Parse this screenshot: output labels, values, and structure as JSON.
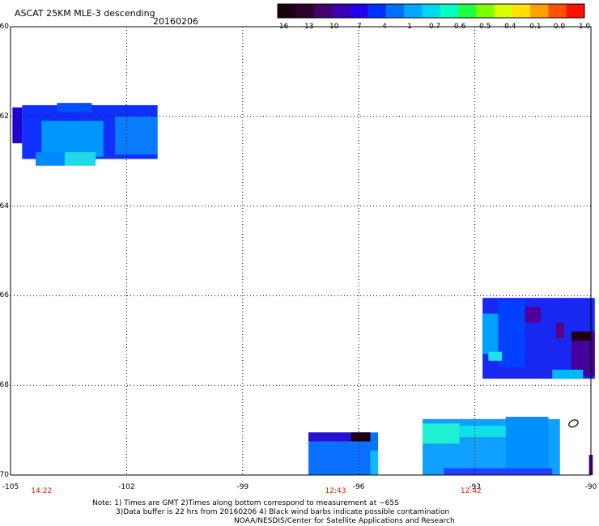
{
  "chart_data": {
    "type": "heatmap",
    "title": "ASCAT 25KM MLE-3 descending",
    "date": "20160206",
    "xlim": [
      -105,
      -90
    ],
    "ylim": [
      -70,
      -60
    ],
    "x_ticks": [
      {
        "value": -105,
        "label": "-105"
      },
      {
        "value": -102,
        "label": "-102"
      },
      {
        "value": -99,
        "label": "-99"
      },
      {
        "value": -96,
        "label": "-96"
      },
      {
        "value": -93,
        "label": "-93"
      },
      {
        "value": -90,
        "label": "-90"
      }
    ],
    "y_ticks": [
      {
        "value": -60,
        "label": "-60"
      },
      {
        "value": -62,
        "label": "-62"
      },
      {
        "value": -64,
        "label": "-64"
      },
      {
        "value": -66,
        "label": "-66"
      },
      {
        "value": -68,
        "label": "-68"
      },
      {
        "value": -70,
        "label": "-70"
      }
    ],
    "pass_times": [
      {
        "x": -104.2,
        "label": "14:22"
      },
      {
        "x": -96.6,
        "label": "12:43"
      },
      {
        "x": -93.1,
        "label": "12:42"
      }
    ],
    "colorbar": {
      "ticks": [
        "-16",
        "-13",
        "-10",
        "-7",
        "-4",
        "-1",
        "-0.7",
        "-0.6",
        "-0.5",
        "-0.4",
        "-0.1",
        "0.0",
        "1.0"
      ],
      "colors": [
        "#1a0010",
        "#2e0030",
        "#45006a",
        "#3a00b0",
        "#2400e8",
        "#0030ff",
        "#0070ff",
        "#00a8ff",
        "#00d8f0",
        "#00ffc0",
        "#20ff40",
        "#80ff00",
        "#d8ff00",
        "#ffe000",
        "#ffa000",
        "#ff5000",
        "#ff1000"
      ]
    },
    "swaths": [
      {
        "x0": -104.7,
        "x1": -101.2,
        "y0": -62.95,
        "y1": -61.75,
        "color": "#1030ff"
      },
      {
        "x0": -103.8,
        "x1": -102.9,
        "y0": -61.9,
        "y1": -61.7,
        "color": "#0050ff"
      },
      {
        "x0": -104.2,
        "x1": -102.6,
        "y0": -62.9,
        "y1": -62.1,
        "color": "#0098ff"
      },
      {
        "x0": -103.6,
        "x1": -102.8,
        "y0": -63.1,
        "y1": -62.8,
        "color": "#20d8e8"
      },
      {
        "x0": -104.35,
        "x1": -103.6,
        "y0": -63.1,
        "y1": -62.8,
        "color": "#0088ff"
      },
      {
        "x0": -102.3,
        "x1": -101.2,
        "y0": -62.85,
        "y1": -62.0,
        "color": "#0a7cff"
      },
      {
        "x0": -104.95,
        "x1": -104.7,
        "y0": -62.6,
        "y1": -61.8,
        "color": "#2200d0"
      },
      {
        "x0": -92.8,
        "x1": -89.9,
        "y0": -67.85,
        "y1": -66.05,
        "color": "#1828f0"
      },
      {
        "x0": -92.8,
        "x1": -92.2,
        "y0": -67.3,
        "y1": -66.4,
        "color": "#00a0ff"
      },
      {
        "x0": -92.4,
        "x1": -91.7,
        "y0": -67.6,
        "y1": -66.1,
        "color": "#0040ff"
      },
      {
        "x0": -91.7,
        "x1": -91.3,
        "y0": -66.6,
        "y1": -66.25,
        "color": "#50009a"
      },
      {
        "x0": -90.9,
        "x1": -90.7,
        "y0": -66.95,
        "y1": -66.6,
        "color": "#5a0080"
      },
      {
        "x0": -90.5,
        "x1": -89.9,
        "y0": -67.8,
        "y1": -66.8,
        "color": "#45009a"
      },
      {
        "x0": -90.5,
        "x1": -90.0,
        "y0": -67.0,
        "y1": -66.8,
        "color": "#200010"
      },
      {
        "x0": -91.0,
        "x1": -90.2,
        "y0": -67.85,
        "y1": -67.65,
        "color": "#00b8ff"
      },
      {
        "x0": -92.65,
        "x1": -92.3,
        "y0": -67.45,
        "y1": -67.25,
        "color": "#20e0f0"
      },
      {
        "x0": -97.3,
        "x1": -95.5,
        "y0": -70.0,
        "y1": -69.05,
        "color": "#0a70ff"
      },
      {
        "x0": -97.3,
        "x1": -95.7,
        "y0": -69.25,
        "y1": -69.05,
        "color": "#2810d0"
      },
      {
        "x0": -96.2,
        "x1": -95.7,
        "y0": -69.25,
        "y1": -69.05,
        "color": "#200018"
      },
      {
        "x0": -95.7,
        "x1": -95.5,
        "y0": -70.0,
        "y1": -69.45,
        "color": "#10b8ff"
      },
      {
        "x0": -94.35,
        "x1": -90.8,
        "y0": -70.0,
        "y1": -68.75,
        "color": "#10a0ff"
      },
      {
        "x0": -94.35,
        "x1": -93.4,
        "y0": -69.3,
        "y1": -68.85,
        "color": "#20f0d0"
      },
      {
        "x0": -93.4,
        "x1": -92.2,
        "y0": -69.15,
        "y1": -68.9,
        "color": "#10e0e8"
      },
      {
        "x0": -92.2,
        "x1": -91.1,
        "y0": -69.85,
        "y1": -68.7,
        "color": "#0090ff"
      },
      {
        "x0": -93.8,
        "x1": -91.0,
        "y0": -70.0,
        "y1": -69.85,
        "color": "#2040ff"
      },
      {
        "x0": -90.05,
        "x1": -89.95,
        "y0": -70.0,
        "y1": -69.55,
        "color": "#5a0090"
      }
    ],
    "markers": [
      {
        "x": -90.45,
        "y": -68.85,
        "shape": "ellipse"
      }
    ]
  },
  "notes": {
    "line1": "Note: 1) Times are GMT 2)Times along bottom correspond to measurement at ~65S",
    "line2": "3)Data buffer is 22 hrs from 20160206 4) Black wind barbs indicate possible contamination",
    "line3": "NOAA/NESDIS/Center for Satellite Applications and Research"
  }
}
